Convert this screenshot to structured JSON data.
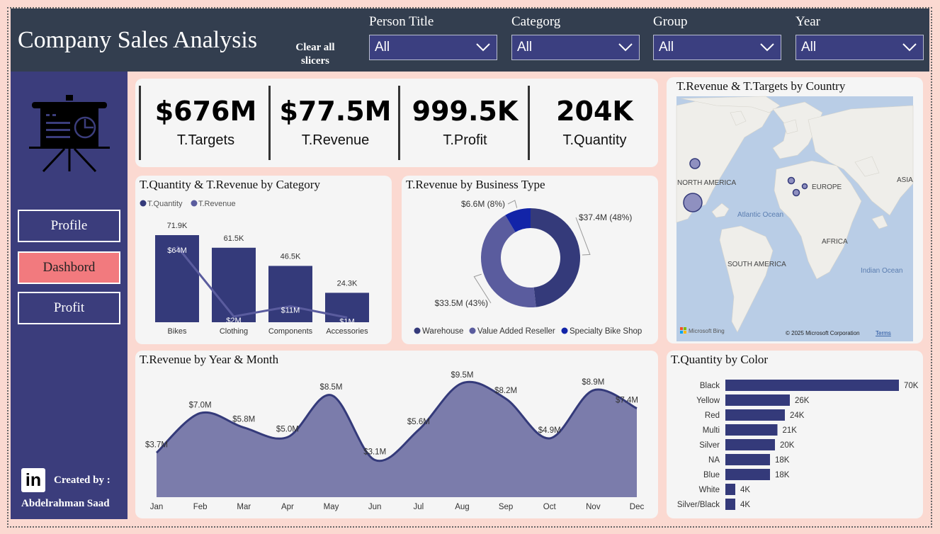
{
  "header": {
    "title": "Company Sales Analysis",
    "clear_label_line1": "Clear all",
    "clear_label_line2": "slicers",
    "slicers": [
      {
        "label": "Person Title",
        "value": "All"
      },
      {
        "label": "Categorg",
        "value": "All"
      },
      {
        "label": "Group",
        "value": "All"
      },
      {
        "label": "Year",
        "value": "All"
      }
    ]
  },
  "sidebar": {
    "nav": [
      {
        "label": "Profile",
        "active": false
      },
      {
        "label": "Dashbord",
        "active": true
      },
      {
        "label": "Profit",
        "active": false
      }
    ],
    "linkedin_glyph": "in",
    "created_by": "Created by :",
    "author": "Abdelrahman Saad"
  },
  "kpis": [
    {
      "value": "$676M",
      "label": "T.Targets"
    },
    {
      "value": "$77.5M",
      "label": "T.Revenue"
    },
    {
      "value": "999.5K",
      "label": "T.Profit"
    },
    {
      "value": "204K",
      "label": "T.Quantity"
    }
  ],
  "colors": {
    "navy": "#343a7a",
    "mid": "#5a5c9e",
    "bright": "#1224a8",
    "area": "#7b7cab",
    "accent": "#f27a7e"
  },
  "chart_data": [
    {
      "type": "bar",
      "title": "T.Quantity & T.Revenue by Category",
      "categories": [
        "Bikes",
        "Clothing",
        "Components",
        "Accessories"
      ],
      "series": [
        {
          "name": "T.Quantity",
          "values": [
            71.9,
            61.5,
            46.5,
            24.3
          ],
          "labels": [
            "71.9K",
            "61.5K",
            "46.5K",
            "24.3K"
          ]
        },
        {
          "name": "T.Revenue",
          "values": [
            64,
            2,
            11,
            1
          ],
          "labels": [
            "$64M",
            "$2M",
            "$11M",
            "$1M"
          ]
        }
      ]
    },
    {
      "type": "pie",
      "title": "T.Revenue by Business Type",
      "slices": [
        {
          "name": "Warehouse",
          "value": 37.4,
          "label": "$37.4M (48%)"
        },
        {
          "name": "Value Added Reseller",
          "value": 33.5,
          "label": "$33.5M (43%)"
        },
        {
          "name": "Specialty Bike Shop",
          "value": 6.6,
          "label": "$6.6M (8%)"
        }
      ]
    },
    {
      "type": "area",
      "title": "T.Revenue by Year & Month",
      "x": [
        "Jan",
        "Feb",
        "Mar",
        "Apr",
        "May",
        "Jun",
        "Jul",
        "Aug",
        "Sep",
        "Oct",
        "Nov",
        "Dec"
      ],
      "values": [
        3.7,
        7.0,
        5.8,
        5.0,
        8.5,
        3.1,
        5.6,
        9.5,
        8.2,
        4.9,
        8.9,
        7.4
      ],
      "labels": [
        "$3.7M",
        "$7.0M",
        "$5.8M",
        "$5.0M",
        "$8.5M",
        "$3.1M",
        "$5.6M",
        "$9.5M",
        "$8.2M",
        "$4.9M",
        "$8.9M",
        "$7.4M"
      ]
    },
    {
      "type": "bar",
      "title": "T.Quantity by Color",
      "categories": [
        "Black",
        "Yellow",
        "Red",
        "Multi",
        "Silver",
        "NA",
        "Blue",
        "White",
        "Silver/Black"
      ],
      "values": [
        70,
        26,
        24,
        21,
        20,
        18,
        18,
        4,
        4
      ],
      "labels": [
        "70K",
        "26K",
        "24K",
        "21K",
        "20K",
        "18K",
        "18K",
        "4K",
        "4K"
      ]
    }
  ],
  "map": {
    "title": "T.Revenue & T.Targets by Country",
    "labels": [
      "NORTH AMERICA",
      "EUROPE",
      "ASIA",
      "Atlantic Ocean",
      "AFRICA",
      "SOUTH AMERICA",
      "Indian Ocean"
    ],
    "bing": "Microsoft Bing",
    "copyright": "© 2025 Microsoft Corporation",
    "terms": "Terms"
  }
}
